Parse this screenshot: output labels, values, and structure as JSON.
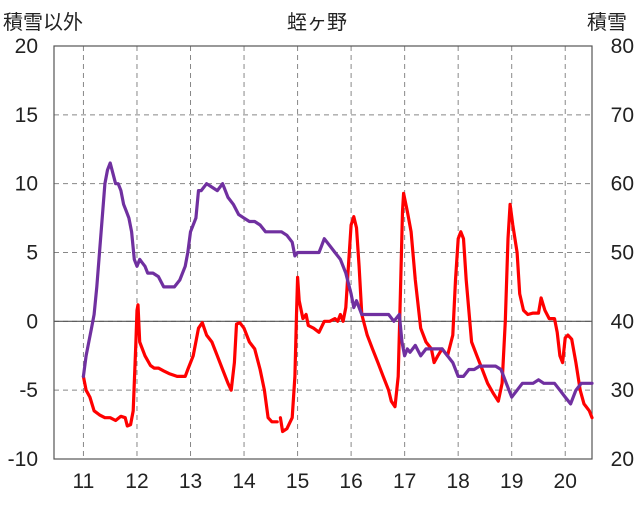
{
  "chart_data": {
    "type": "line",
    "title": "蛭ヶ野",
    "ylabel_left": "積雪以外",
    "ylabel_right": "積雪",
    "xlim": [
      10.45,
      20.5
    ],
    "ylim_left": [
      -10,
      20
    ],
    "ylim_right": [
      20,
      80
    ],
    "x_ticks": [
      11,
      12,
      13,
      14,
      15,
      16,
      17,
      18,
      19,
      20
    ],
    "x_tick_labels": [
      "11",
      "12",
      "13",
      "14",
      "15",
      "16",
      "17",
      "18",
      "19",
      "20"
    ],
    "y_left_ticks": [
      -10,
      -5,
      0,
      5,
      10,
      15,
      20
    ],
    "y_left_tick_labels": [
      "-10",
      "-5",
      "0",
      "5",
      "10",
      "15",
      "20"
    ],
    "y_right_ticks": [
      20,
      30,
      40,
      50,
      60,
      70,
      80
    ],
    "y_right_tick_labels": [
      "20",
      "30",
      "40",
      "50",
      "60",
      "70",
      "80"
    ],
    "grid": "dashed vertical and horizontal",
    "series": [
      {
        "axis": "left",
        "color": "#ff0000",
        "segments": [
          [
            [
              11.0,
              -4.0
            ],
            [
              11.05,
              -5.0
            ],
            [
              11.12,
              -5.5
            ],
            [
              11.2,
              -6.5
            ],
            [
              11.3,
              -6.8
            ],
            [
              11.4,
              -7.0
            ],
            [
              11.5,
              -7.0
            ],
            [
              11.6,
              -7.2
            ],
            [
              11.7,
              -6.9
            ],
            [
              11.78,
              -7.0
            ],
            [
              11.82,
              -7.6
            ],
            [
              11.88,
              -7.5
            ],
            [
              11.93,
              -6.5
            ],
            [
              11.98,
              -1.5
            ],
            [
              12.0,
              0.8
            ],
            [
              12.02,
              1.2
            ],
            [
              12.05,
              -1.5
            ],
            [
              12.15,
              -2.5
            ],
            [
              12.25,
              -3.2
            ],
            [
              12.32,
              -3.4
            ],
            [
              12.4,
              -3.4
            ],
            [
              12.5,
              -3.6
            ],
            [
              12.6,
              -3.8
            ],
            [
              12.75,
              -4.0
            ],
            [
              12.9,
              -4.0
            ],
            [
              12.95,
              -3.5
            ],
            [
              13.05,
              -2.5
            ],
            [
              13.15,
              -0.5
            ],
            [
              13.22,
              -0.1
            ],
            [
              13.3,
              -1.0
            ],
            [
              13.4,
              -1.5
            ],
            [
              13.5,
              -2.5
            ],
            [
              13.6,
              -3.5
            ],
            [
              13.7,
              -4.5
            ],
            [
              13.76,
              -5.0
            ],
            [
              13.82,
              -3.0
            ],
            [
              13.86,
              -0.2
            ],
            [
              13.92,
              -0.1
            ],
            [
              14.0,
              -0.5
            ],
            [
              14.1,
              -1.5
            ],
            [
              14.2,
              -2.0
            ],
            [
              14.3,
              -3.5
            ],
            [
              14.38,
              -5.0
            ],
            [
              14.45,
              -7.0
            ],
            [
              14.52,
              -7.3
            ],
            [
              14.62,
              -7.3
            ]
          ],
          [
            [
              14.68,
              -7.0
            ],
            [
              14.72,
              -8.0
            ],
            [
              14.8,
              -7.8
            ],
            [
              14.9,
              -7.0
            ],
            [
              14.95,
              -4.0
            ],
            [
              14.98,
              0.5
            ],
            [
              15.0,
              3.2
            ],
            [
              15.03,
              1.5
            ],
            [
              15.1,
              0.2
            ],
            [
              15.16,
              0.5
            ],
            [
              15.2,
              -0.3
            ],
            [
              15.3,
              -0.5
            ],
            [
              15.4,
              -0.8
            ],
            [
              15.5,
              0.0
            ],
            [
              15.6,
              0.0
            ],
            [
              15.7,
              0.2
            ],
            [
              15.75,
              0.0
            ],
            [
              15.8,
              0.5
            ],
            [
              15.85,
              0.0
            ],
            [
              15.9,
              1.0
            ],
            [
              15.95,
              4.0
            ],
            [
              16.0,
              7.0
            ],
            [
              16.05,
              7.6
            ],
            [
              16.1,
              6.8
            ],
            [
              16.15,
              4.0
            ],
            [
              16.2,
              0.5
            ],
            [
              16.3,
              -1.0
            ],
            [
              16.4,
              -2.0
            ],
            [
              16.5,
              -3.0
            ],
            [
              16.6,
              -4.0
            ],
            [
              16.7,
              -5.0
            ],
            [
              16.75,
              -5.8
            ],
            [
              16.82,
              -6.2
            ],
            [
              16.88,
              -4.0
            ],
            [
              16.92,
              2.0
            ],
            [
              16.96,
              8.0
            ],
            [
              16.98,
              9.3
            ],
            [
              17.05,
              8.0
            ],
            [
              17.12,
              6.5
            ],
            [
              17.2,
              3.0
            ],
            [
              17.3,
              -0.5
            ],
            [
              17.4,
              -1.5
            ],
            [
              17.5,
              -2.0
            ],
            [
              17.55,
              -3.0
            ],
            [
              17.62,
              -2.5
            ],
            [
              17.7,
              -2.0
            ],
            [
              17.8,
              -2.5
            ],
            [
              17.9,
              -1.0
            ],
            [
              17.95,
              3.0
            ],
            [
              18.0,
              6.0
            ],
            [
              18.05,
              6.5
            ],
            [
              18.1,
              6.0
            ],
            [
              18.15,
              3.0
            ],
            [
              18.25,
              -1.5
            ],
            [
              18.35,
              -2.5
            ],
            [
              18.45,
              -3.5
            ],
            [
              18.55,
              -4.5
            ],
            [
              18.65,
              -5.2
            ],
            [
              18.75,
              -5.8
            ],
            [
              18.82,
              -4.5
            ],
            [
              18.88,
              0.0
            ],
            [
              18.93,
              6.0
            ],
            [
              18.97,
              8.5
            ],
            [
              19.02,
              7.0
            ],
            [
              19.1,
              5.0
            ],
            [
              19.15,
              2.0
            ],
            [
              19.22,
              0.8
            ],
            [
              19.3,
              0.5
            ],
            [
              19.4,
              0.6
            ],
            [
              19.5,
              0.6
            ],
            [
              19.55,
              1.7
            ],
            [
              19.62,
              0.8
            ],
            [
              19.7,
              0.2
            ],
            [
              19.8,
              0.2
            ],
            [
              19.85,
              -0.8
            ],
            [
              19.9,
              -2.5
            ],
            [
              19.95,
              -3.0
            ],
            [
              20.0,
              -1.2
            ],
            [
              20.05,
              -1.0
            ],
            [
              20.12,
              -1.3
            ],
            [
              20.2,
              -3.0
            ],
            [
              20.28,
              -5.0
            ],
            [
              20.35,
              -6.0
            ],
            [
              20.45,
              -6.5
            ],
            [
              20.5,
              -7.0
            ]
          ]
        ]
      },
      {
        "axis": "right",
        "color": "#7030a0",
        "segments": [
          [
            [
              11.0,
              32.0
            ],
            [
              11.05,
              35.0
            ],
            [
              11.1,
              37.0
            ],
            [
              11.15,
              39.0
            ],
            [
              11.2,
              41.0
            ],
            [
              11.25,
              45.0
            ],
            [
              11.3,
              50.0
            ],
            [
              11.35,
              55.0
            ],
            [
              11.4,
              60.0
            ],
            [
              11.45,
              62.0
            ],
            [
              11.5,
              63.0
            ],
            [
              11.55,
              61.5
            ],
            [
              11.6,
              60.0
            ],
            [
              11.65,
              60.0
            ],
            [
              11.7,
              59.0
            ],
            [
              11.75,
              57.0
            ],
            [
              11.8,
              56.0
            ],
            [
              11.85,
              55.0
            ],
            [
              11.9,
              53.0
            ],
            [
              11.95,
              49.0
            ],
            [
              12.0,
              48.0
            ],
            [
              12.05,
              49.0
            ],
            [
              12.1,
              48.5
            ],
            [
              12.15,
              48.0
            ],
            [
              12.2,
              47.0
            ],
            [
              12.3,
              47.0
            ],
            [
              12.4,
              46.5
            ],
            [
              12.5,
              45.0
            ],
            [
              12.6,
              45.0
            ],
            [
              12.7,
              45.0
            ],
            [
              12.8,
              46.0
            ],
            [
              12.9,
              48.0
            ],
            [
              12.95,
              50.0
            ],
            [
              13.0,
              53.0
            ],
            [
              13.1,
              55.0
            ],
            [
              13.15,
              59.0
            ],
            [
              13.2,
              59.0
            ],
            [
              13.3,
              60.0
            ],
            [
              13.4,
              59.5
            ],
            [
              13.5,
              59.0
            ],
            [
              13.6,
              60.0
            ],
            [
              13.7,
              58.0
            ],
            [
              13.8,
              57.0
            ],
            [
              13.9,
              55.5
            ],
            [
              14.0,
              55.0
            ],
            [
              14.1,
              54.5
            ],
            [
              14.2,
              54.5
            ],
            [
              14.3,
              54.0
            ],
            [
              14.4,
              53.0
            ],
            [
              14.5,
              53.0
            ],
            [
              14.6,
              53.0
            ],
            [
              14.7,
              53.0
            ],
            [
              14.8,
              52.5
            ],
            [
              14.9,
              51.5
            ],
            [
              14.95,
              49.5
            ],
            [
              15.0,
              50.0
            ],
            [
              15.1,
              50.0
            ],
            [
              15.2,
              50.0
            ],
            [
              15.3,
              50.0
            ],
            [
              15.4,
              50.0
            ],
            [
              15.45,
              51.0
            ],
            [
              15.5,
              52.0
            ],
            [
              15.6,
              51.0
            ],
            [
              15.7,
              50.0
            ],
            [
              15.8,
              49.0
            ],
            [
              15.9,
              47.0
            ],
            [
              16.0,
              44.0
            ],
            [
              16.05,
              42.0
            ],
            [
              16.1,
              43.0
            ],
            [
              16.15,
              42.0
            ],
            [
              16.2,
              41.0
            ],
            [
              16.3,
              41.0
            ],
            [
              16.4,
              41.0
            ],
            [
              16.5,
              41.0
            ],
            [
              16.6,
              41.0
            ],
            [
              16.7,
              41.0
            ],
            [
              16.8,
              40.0
            ],
            [
              16.9,
              41.0
            ],
            [
              16.95,
              37.0
            ],
            [
              17.0,
              35.0
            ],
            [
              17.05,
              36.0
            ],
            [
              17.1,
              35.5
            ],
            [
              17.2,
              36.5
            ],
            [
              17.3,
              35.0
            ],
            [
              17.4,
              36.0
            ],
            [
              17.5,
              36.0
            ],
            [
              17.6,
              36.0
            ],
            [
              17.7,
              36.0
            ],
            [
              17.8,
              35.0
            ],
            [
              17.9,
              34.0
            ],
            [
              18.0,
              32.0
            ],
            [
              18.1,
              32.0
            ],
            [
              18.2,
              33.0
            ],
            [
              18.3,
              33.0
            ],
            [
              18.4,
              33.5
            ],
            [
              18.5,
              33.5
            ],
            [
              18.6,
              33.5
            ],
            [
              18.7,
              33.5
            ],
            [
              18.8,
              33.0
            ],
            [
              18.9,
              31.0
            ],
            [
              19.0,
              29.0
            ],
            [
              19.1,
              30.0
            ],
            [
              19.2,
              31.0
            ],
            [
              19.3,
              31.0
            ],
            [
              19.4,
              31.0
            ],
            [
              19.5,
              31.5
            ],
            [
              19.6,
              31.0
            ],
            [
              19.7,
              31.0
            ],
            [
              19.8,
              31.0
            ],
            [
              19.9,
              30.0
            ],
            [
              20.0,
              29.0
            ],
            [
              20.1,
              28.0
            ],
            [
              20.2,
              30.0
            ],
            [
              20.3,
              31.0
            ],
            [
              20.4,
              31.0
            ],
            [
              20.5,
              31.0
            ]
          ]
        ]
      }
    ]
  }
}
